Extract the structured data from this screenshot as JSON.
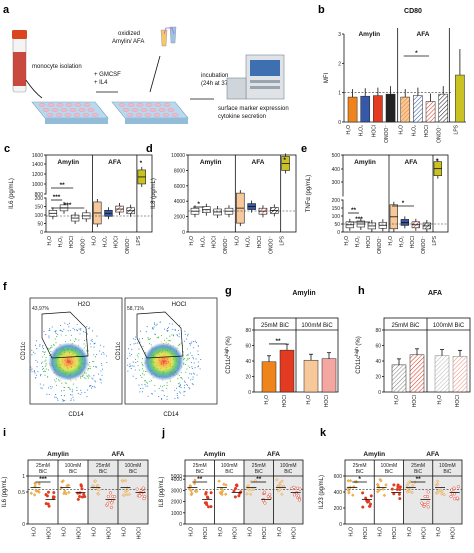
{
  "panel_a": {
    "label": "a",
    "steps": {
      "isolation": "monocyte isolation",
      "culture_1": "+ GMCSF",
      "culture_2": "+ IL4",
      "oxidation_1": "oxidized",
      "oxidation_2": "Amylin/ AFA",
      "incubation_1": "incubation",
      "incubation_2": "(24h at 37°C)",
      "readout_1": "surface marker expression",
      "readout_2": "cytokine secretion"
    }
  },
  "chart_data": [
    {
      "panel": "b",
      "type": "bar",
      "title": "CD80",
      "ylabel": "MFI",
      "ylim": [
        0,
        3
      ],
      "yticks": [
        0,
        1,
        2,
        3
      ],
      "groups": [
        "Amylin",
        "AFA"
      ],
      "categories": [
        "H₂O",
        "H₂O₂",
        "HOCl",
        "ONOO⁻",
        "H₂O",
        "H₂O₂",
        "HOCl",
        "ONOO⁻",
        "LPS"
      ],
      "values": [
        0.85,
        0.88,
        0.9,
        0.95,
        0.85,
        0.9,
        0.7,
        0.95,
        1.6
      ],
      "colors": [
        "#f0841c",
        "#3757a8",
        "#e23b22",
        "#222222",
        "#f7c89a",
        "#3757a8",
        "#e23b22",
        "#222222",
        "#c9c222"
      ],
      "significance": [
        "*"
      ]
    },
    {
      "panel": "c",
      "type": "box",
      "ylabel": "IL6 (pg/mL)",
      "ylim_low": [
        0,
        200
      ],
      "ylim_high": [
        200,
        1600
      ],
      "yticks": [
        "0",
        "50",
        "100",
        "150",
        "200",
        "800",
        "1000",
        "1200",
        "1400",
        "1600"
      ],
      "groups": [
        "Amylin",
        "AFA"
      ],
      "categories": [
        "H₂O",
        "H₂O₂",
        "HOCl",
        "ONOO⁻",
        "H₂O",
        "H₂O₂",
        "HOCl",
        "ONOO⁻",
        "LPS"
      ],
      "medians": [
        110,
        142,
        82,
        95,
        112,
        110,
        135,
        125,
        1150
      ],
      "significance": [
        "**",
        "***",
        "***",
        "*"
      ]
    },
    {
      "panel": "d",
      "type": "box",
      "ylabel": "IL8 (pg/mL)",
      "ylim": [
        0,
        10000
      ],
      "yticks": [
        "0",
        "2000",
        "4000",
        "6000",
        "8000",
        "10000"
      ],
      "groups": [
        "Amylin",
        "AFA"
      ],
      "categories": [
        "H₂O",
        "H₂O₂",
        "HOCl",
        "ONOO⁻",
        "H₂O",
        "H₂O₂",
        "HOCl",
        "ONOO⁻",
        "LPS"
      ],
      "medians": [
        2700,
        2900,
        2600,
        2700,
        3100,
        3300,
        2700,
        2800,
        8900
      ],
      "significance": [
        "*",
        "*"
      ]
    },
    {
      "panel": "e",
      "type": "box",
      "ylabel": "TNFα (pg/mL)",
      "ylim_low": [
        0,
        200
      ],
      "ylim_high": [
        200,
        500
      ],
      "yticks": [
        "0",
        "50",
        "100",
        "150",
        "200",
        "300",
        "400",
        "500"
      ],
      "groups": [
        "Amylin",
        "AFA"
      ],
      "categories": [
        "H₂O",
        "H₂O₂",
        "HOCl",
        "ONOO⁻",
        "H₂O",
        "H₂O₂",
        "HOCl",
        "ONOO⁻",
        "LPS"
      ],
      "medians": [
        45,
        50,
        38,
        42,
        95,
        60,
        45,
        38,
        400
      ],
      "significance": [
        "**",
        "***",
        "*",
        "*"
      ]
    },
    {
      "panel": "g",
      "type": "bar",
      "title": "Amylin",
      "ylabel": "CD11c",
      "ylabel_sup": "high",
      "ylabel_unit": "(%)",
      "ylim": [
        0,
        80
      ],
      "yticks": [
        0,
        20,
        40,
        60,
        80
      ],
      "groups": [
        "25mM BiC",
        "100mM BiC"
      ],
      "categories": [
        "H₂O",
        "HOCl",
        "H₂O",
        "HOCl"
      ],
      "values": [
        39,
        54,
        41,
        43
      ],
      "colors": [
        "#f0841c",
        "#e23b22",
        "#f7c89a",
        "#f4a6a0"
      ],
      "significance": [
        "**"
      ]
    },
    {
      "panel": "h",
      "type": "bar",
      "title": "AFA",
      "ylabel": "CD11c",
      "ylabel_sup": "high",
      "ylabel_unit": "(%)",
      "ylim": [
        0,
        80
      ],
      "yticks": [
        0,
        20,
        40,
        60,
        80
      ],
      "groups": [
        "25mM BiC",
        "100mM BiC"
      ],
      "categories": [
        "H₂O",
        "HOCl",
        "H₂O",
        "HOCl"
      ],
      "values": [
        35,
        48,
        47,
        46
      ],
      "colors": [
        "#888888",
        "#e23b22",
        "#dddddd",
        "#f4a6a0"
      ],
      "significance": []
    },
    {
      "panel": "i",
      "type": "scatter",
      "ylabel": "IL6 (pg/mL)",
      "ylim": [
        0,
        1
      ],
      "yticks": [
        "0",
        "0.5",
        "1"
      ],
      "groups": [
        "Amylin",
        "AFA"
      ],
      "subgroups": [
        "25mM BiC",
        "100mM BiC",
        "25mM BiC",
        "100mM BiC"
      ],
      "categories": [
        "H₂O",
        "HOCl",
        "H₂O",
        "HOCl",
        "H₂O",
        "HOCl",
        "H₂O",
        "HOCl"
      ],
      "significance": [
        "***"
      ]
    },
    {
      "panel": "j",
      "type": "scatter",
      "ylabel": "IL8 (pg/mL)",
      "ylim": [
        0,
        5000
      ],
      "yticks": [
        "0",
        "1000",
        "2000",
        "3000",
        "4000",
        "5000"
      ],
      "groups": [
        "Amylin",
        "AFA"
      ],
      "subgroups": [
        "25mM BiC",
        "100mM BiC",
        "25mM BiC",
        "100mM BiC"
      ],
      "categories": [
        "H₂O",
        "HOCl",
        "H₂O",
        "HOCl",
        "H₂O",
        "HOCl",
        "H₂O",
        "HOCl"
      ],
      "significance": [
        "**",
        "**"
      ]
    },
    {
      "panel": "k",
      "type": "scatter",
      "ylabel": "IL23 (pg/mL)",
      "ylim": [
        0,
        600
      ],
      "yticks": [
        "0",
        "200",
        "400",
        "600"
      ],
      "groups": [
        "Amylin",
        "AFA"
      ],
      "subgroups": [
        "25mM BiC",
        "100mM BiC",
        "25mM BiC",
        "100mM BiC"
      ],
      "categories": [
        "H₂O",
        "HOCl",
        "H₂O",
        "HOCl",
        "H₂O",
        "HOCl",
        "H₂O",
        "HOCl"
      ],
      "significance": [
        "*",
        "**"
      ]
    }
  ],
  "panel_f": {
    "label": "f",
    "plots": [
      {
        "title": "H2O",
        "gate_pct": "43,97%",
        "xlabel": "CD14",
        "ylabel": "CD11c"
      },
      {
        "title": "HOCl",
        "gate_pct": "58,71%",
        "xlabel": "CD14",
        "ylabel": "CD11c"
      }
    ]
  }
}
